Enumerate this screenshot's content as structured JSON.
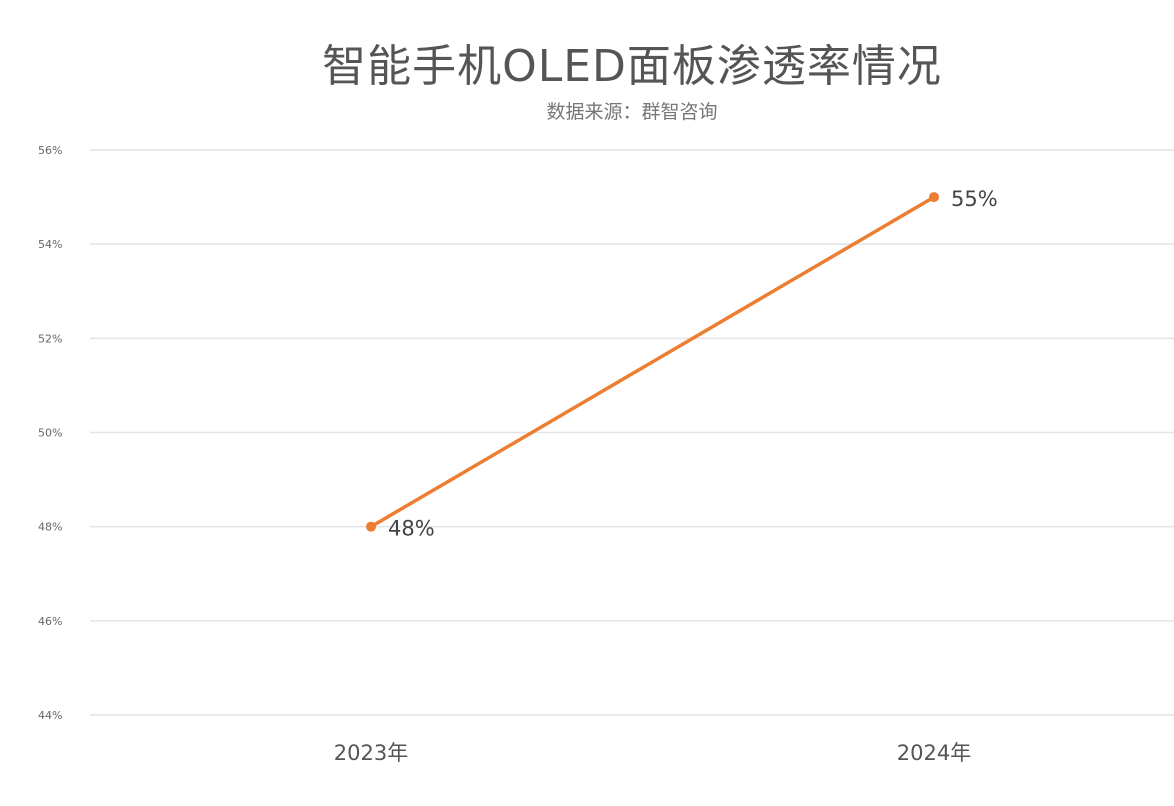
{
  "chart_data": {
    "type": "line",
    "title": "智能手机OLED面板渗透率情况",
    "subtitle": "数据来源：群智咨询",
    "categories": [
      "2023年",
      "2024年"
    ],
    "series": [
      {
        "values": [
          48,
          55
        ],
        "data_labels": [
          "48%",
          "55%"
        ]
      }
    ],
    "y_ticks": [
      "56%",
      "54%",
      "52%",
      "50%",
      "48%",
      "46%",
      "44%"
    ],
    "ylim": [
      44,
      56
    ],
    "y_unit": "%",
    "grid": true,
    "legend": "none",
    "colors": {
      "line": "#ED7D31",
      "grid": "#E3E3E3"
    }
  }
}
